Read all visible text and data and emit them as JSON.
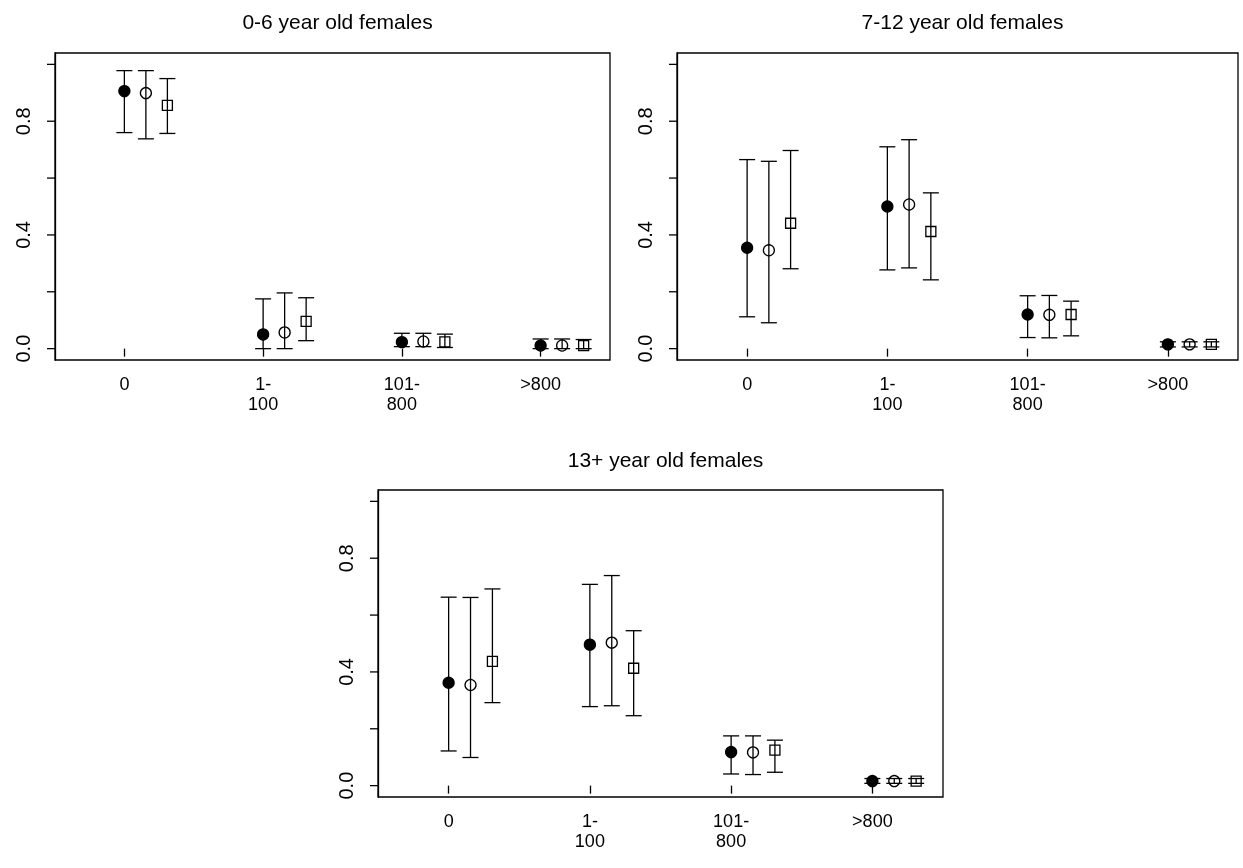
{
  "chart_data": [
    {
      "type": "scatter",
      "title": "0-6 year old females",
      "categories": [
        "0",
        "1-\n100",
        "101-\n800",
        ">800"
      ],
      "ylim": [
        -0.04,
        1.04
      ],
      "yticks": [
        {
          "value": 0,
          "label": "0.0"
        },
        {
          "value": 0.2,
          "label": null
        },
        {
          "value": 0.4,
          "label": "0.4"
        },
        {
          "value": 0.6,
          "label": null
        },
        {
          "value": 0.8,
          "label": "0.8"
        },
        {
          "value": 1.0,
          "label": null
        }
      ],
      "series": [
        {
          "color": "#000000",
          "marker": "circle",
          "values": [
            0.906,
            0.05,
            0.023,
            0.011
          ],
          "errors": [
            [
              0.76,
              0.978
            ],
            [
              0.0,
              0.175
            ],
            [
              0.007,
              0.054
            ],
            [
              0.0,
              0.034
            ]
          ]
        },
        {
          "color": "#ffffff",
          "marker": "circle",
          "values": [
            0.899,
            0.057,
            0.025,
            0.011
          ],
          "errors": [
            [
              0.738,
              0.978
            ],
            [
              0.0,
              0.196
            ],
            [
              0.007,
              0.054
            ],
            [
              0.0,
              0.034
            ]
          ]
        },
        {
          "color": "#ffffff",
          "marker": "square",
          "values": [
            0.856,
            0.096,
            0.024,
            0.011
          ],
          "errors": [
            [
              0.757,
              0.95
            ],
            [
              0.028,
              0.179
            ],
            [
              0.004,
              0.051
            ],
            [
              0.0,
              0.032
            ]
          ]
        }
      ]
    },
    {
      "type": "scatter",
      "title": "7-12 year old females",
      "categories": [
        "0",
        "1-\n100",
        "101-\n800",
        ">800"
      ],
      "ylim": [
        -0.04,
        1.04
      ],
      "yticks": [
        {
          "value": 0,
          "label": "0.0"
        },
        {
          "value": 0.2,
          "label": null
        },
        {
          "value": 0.4,
          "label": "0.4"
        },
        {
          "value": 0.6,
          "label": null
        },
        {
          "value": 0.8,
          "label": "0.8"
        },
        {
          "value": 1.0,
          "label": null
        }
      ],
      "series": [
        {
          "color": "#000000",
          "marker": "circle",
          "values": [
            0.355,
            0.5,
            0.12,
            0.015
          ],
          "errors": [
            [
              0.112,
              0.665
            ],
            [
              0.277,
              0.71
            ],
            [
              0.039,
              0.186
            ],
            [
              0.006,
              0.024
            ]
          ]
        },
        {
          "color": "#ffffff",
          "marker": "circle",
          "values": [
            0.346,
            0.507,
            0.119,
            0.015
          ],
          "errors": [
            [
              0.091,
              0.659
            ],
            [
              0.284,
              0.735
            ],
            [
              0.038,
              0.187
            ],
            [
              0.006,
              0.024
            ]
          ]
        },
        {
          "color": "#ffffff",
          "marker": "square",
          "values": [
            0.441,
            0.412,
            0.12,
            0.015
          ],
          "errors": [
            [
              0.281,
              0.697
            ],
            [
              0.242,
              0.548
            ],
            [
              0.045,
              0.167
            ],
            [
              0.006,
              0.024
            ]
          ]
        }
      ]
    },
    {
      "type": "scatter",
      "title": "13+ year old females",
      "categories": [
        "0",
        "1-\n100",
        "101-\n800",
        ">800"
      ],
      "ylim": [
        -0.04,
        1.04
      ],
      "yticks": [
        {
          "value": 0,
          "label": "0.0"
        },
        {
          "value": 0.2,
          "label": null
        },
        {
          "value": 0.4,
          "label": "0.4"
        },
        {
          "value": 0.6,
          "label": null
        },
        {
          "value": 0.8,
          "label": "0.8"
        },
        {
          "value": 1.0,
          "label": null
        }
      ],
      "series": [
        {
          "color": "#000000",
          "marker": "circle",
          "values": [
            0.362,
            0.496,
            0.118,
            0.016
          ],
          "errors": [
            [
              0.122,
              0.663
            ],
            [
              0.278,
              0.708
            ],
            [
              0.041,
              0.175
            ],
            [
              0.008,
              0.025
            ]
          ]
        },
        {
          "color": "#ffffff",
          "marker": "circle",
          "values": [
            0.354,
            0.503,
            0.117,
            0.016
          ],
          "errors": [
            [
              0.099,
              0.662
            ],
            [
              0.281,
              0.739
            ],
            [
              0.039,
              0.175
            ],
            [
              0.008,
              0.025
            ]
          ]
        },
        {
          "color": "#ffffff",
          "marker": "square",
          "values": [
            0.437,
            0.413,
            0.125,
            0.016
          ],
          "errors": [
            [
              0.292,
              0.692
            ],
            [
              0.246,
              0.545
            ],
            [
              0.047,
              0.16
            ],
            [
              0.008,
              0.025
            ]
          ]
        }
      ]
    }
  ]
}
